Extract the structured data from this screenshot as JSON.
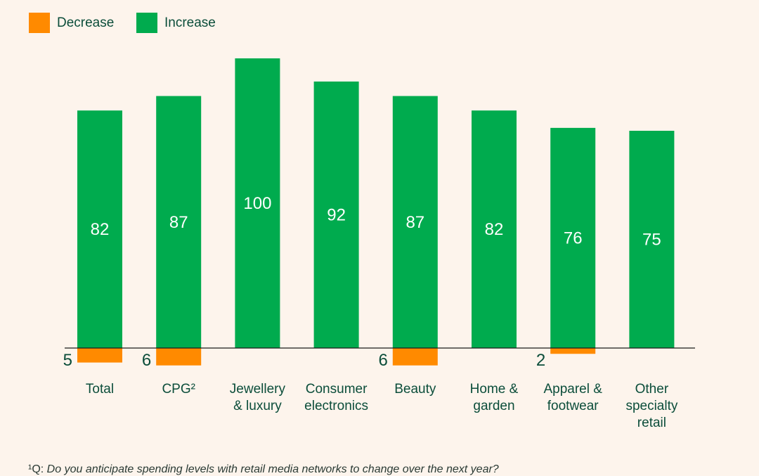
{
  "colors": {
    "increase": "#00ab4e",
    "decrease": "#ff8a00",
    "text": "#0b4d3a",
    "axis": "#1a1a1a"
  },
  "legend": {
    "items": [
      {
        "label": "Decrease",
        "color": "#ff8a00"
      },
      {
        "label": "Increase",
        "color": "#00ab4e"
      }
    ]
  },
  "chart_data": {
    "type": "bar",
    "title": "",
    "xlabel": "",
    "ylabel": "",
    "legend_position": "top-left",
    "grid": false,
    "categories": [
      [
        "Total"
      ],
      [
        "CPG²"
      ],
      [
        "Jewellery",
        "& luxury"
      ],
      [
        "Consumer",
        "electronics"
      ],
      [
        "Beauty"
      ],
      [
        "Home &",
        "garden"
      ],
      [
        "Apparel &",
        "footwear"
      ],
      [
        "Other",
        "specialty",
        "retail"
      ]
    ],
    "series": [
      {
        "name": "Increase",
        "values": [
          82,
          87,
          100,
          92,
          87,
          82,
          76,
          75
        ]
      },
      {
        "name": "Decrease",
        "values": [
          5,
          6,
          null,
          null,
          6,
          null,
          2,
          null
        ]
      }
    ],
    "ylim": [
      -6,
      100
    ]
  },
  "footnote": {
    "marker": "¹Q:",
    "question": "Do you anticipate spending levels with retail media networks to change over the next year?"
  }
}
